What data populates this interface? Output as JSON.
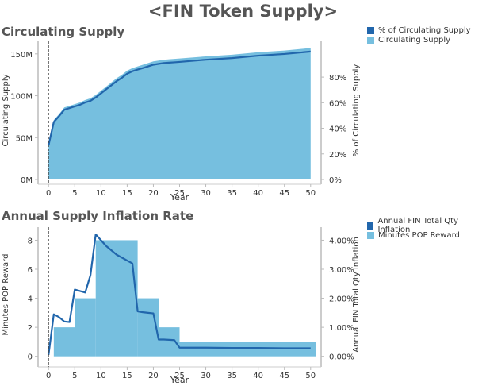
{
  "page_title": "<FIN Token Supply>",
  "colors": {
    "line": "#2166ac",
    "area": "#76bfdf",
    "axis": "#999999",
    "dash": "#444444"
  },
  "chart_data": [
    {
      "type": "area",
      "title": "Circulating Supply",
      "xlabel": "Year",
      "ylabel": "Circulating Supply",
      "ylabel_right": "% of Circulating Supply",
      "xlim": [
        -2,
        52
      ],
      "ylim": [
        0,
        165
      ],
      "ylim_right": [
        0,
        108
      ],
      "x_ticks": [
        0,
        5,
        10,
        15,
        20,
        25,
        30,
        35,
        40,
        45,
        50
      ],
      "y_ticks": [
        {
          "value": 0,
          "label": "0M"
        },
        {
          "value": 50,
          "label": "50M"
        },
        {
          "value": 100,
          "label": "100M"
        },
        {
          "value": 150,
          "label": "150M"
        }
      ],
      "y_ticks_right": [
        {
          "value": 0,
          "label": "0%"
        },
        {
          "value": 20,
          "label": "20%"
        },
        {
          "value": 40,
          "label": "40%"
        },
        {
          "value": 60,
          "label": "60%"
        },
        {
          "value": 80,
          "label": "80%"
        }
      ],
      "legend": [
        {
          "name": "% of Circulating Supply",
          "color": "#2166ac"
        },
        {
          "name": "Circulating Supply",
          "color": "#76bfdf"
        }
      ],
      "legend_position": "right",
      "vline_x": 0,
      "series": [
        {
          "name": "Circulating Supply",
          "kind": "area",
          "axis": "left",
          "x": [
            0,
            1,
            2,
            3,
            4,
            5,
            6,
            7,
            8,
            9,
            10,
            11,
            12,
            13,
            14,
            15,
            16,
            17,
            18,
            19,
            20,
            21,
            22,
            23,
            24,
            25,
            30,
            35,
            40,
            45,
            50
          ],
          "values": [
            42,
            71,
            78,
            86,
            88,
            90,
            92,
            95,
            97,
            101,
            106,
            111,
            116,
            121,
            125,
            130,
            133,
            135,
            137,
            139,
            141,
            142,
            143,
            143.5,
            144,
            144.5,
            147,
            149,
            152,
            154,
            157
          ]
        },
        {
          "name": "% of Circulating Supply",
          "kind": "line",
          "axis": "right",
          "x": [
            0,
            1,
            2,
            3,
            4,
            5,
            6,
            7,
            8,
            9,
            10,
            11,
            12,
            13,
            14,
            15,
            16,
            17,
            18,
            19,
            20,
            21,
            22,
            23,
            24,
            25,
            30,
            35,
            40,
            45,
            50
          ],
          "values": [
            26.7,
            44.9,
            49.5,
            54.5,
            55.8,
            57.1,
            58.4,
            60.2,
            61.5,
            64.1,
            67.3,
            70.5,
            73.7,
            76.9,
            79.5,
            82.7,
            84.6,
            85.9,
            87.1,
            88.4,
            89.7,
            90.4,
            91.0,
            91.3,
            91.6,
            91.9,
            93.6,
            94.9,
            96.8,
            98.1,
            100
          ]
        }
      ]
    },
    {
      "type": "bar",
      "title": "Annual Supply Inflation Rate",
      "xlabel": "Year",
      "ylabel": "Minutes POP Reward",
      "ylabel_right": "Annual FIN Total Qty Inflation",
      "xlim": [
        -2,
        52
      ],
      "ylim": [
        -0.4,
        8.9
      ],
      "ylim_right": [
        -0.2,
        4.45
      ],
      "x_ticks": [
        0,
        5,
        10,
        15,
        20,
        25,
        30,
        35,
        40,
        45,
        50
      ],
      "y_ticks": [
        {
          "value": 0,
          "label": "0"
        },
        {
          "value": 2,
          "label": "2"
        },
        {
          "value": 4,
          "label": "4"
        },
        {
          "value": 6,
          "label": "6"
        },
        {
          "value": 8,
          "label": "8"
        }
      ],
      "y_ticks_right": [
        {
          "value": 0,
          "label": "0.00%"
        },
        {
          "value": 1,
          "label": "1.00%"
        },
        {
          "value": 2,
          "label": "2.00%"
        },
        {
          "value": 3,
          "label": "3.00%"
        },
        {
          "value": 4,
          "label": "4.00%"
        }
      ],
      "legend": [
        {
          "name": "Annual FIN Total Qty Inflation",
          "color": "#2166ac"
        },
        {
          "name": "Minutes POP Reward",
          "color": "#76bfdf"
        }
      ],
      "legend_position": "right",
      "vline_x": 0,
      "bars": [
        {
          "from": 0,
          "to": 1,
          "value": 0
        },
        {
          "from": 1,
          "to": 5,
          "value": 1
        },
        {
          "from": 5,
          "to": 9,
          "value": 2
        },
        {
          "from": 9,
          "to": 17,
          "value": 4
        },
        {
          "from": 17,
          "to": 21,
          "value": 2
        },
        {
          "from": 21,
          "to": 25,
          "value": 1
        },
        {
          "from": 25,
          "to": 51,
          "value": 0.5
        }
      ],
      "series": [
        {
          "name": "Annual FIN Total Qty Inflation",
          "kind": "line",
          "axis": "right",
          "x": [
            0,
            1,
            2,
            3,
            4,
            5,
            6,
            7,
            8,
            9,
            10,
            11,
            12,
            13,
            14,
            15,
            16,
            17,
            18,
            19,
            20,
            21,
            22,
            23,
            24,
            25,
            30,
            35,
            40,
            45,
            50
          ],
          "values": [
            0.05,
            1.45,
            1.35,
            1.2,
            1.18,
            2.3,
            2.25,
            2.2,
            2.8,
            4.2,
            4.0,
            3.8,
            3.65,
            3.5,
            3.4,
            3.3,
            3.2,
            1.55,
            1.52,
            1.5,
            1.48,
            0.58,
            0.58,
            0.57,
            0.56,
            0.3,
            0.3,
            0.29,
            0.29,
            0.28,
            0.28
          ]
        }
      ]
    }
  ]
}
